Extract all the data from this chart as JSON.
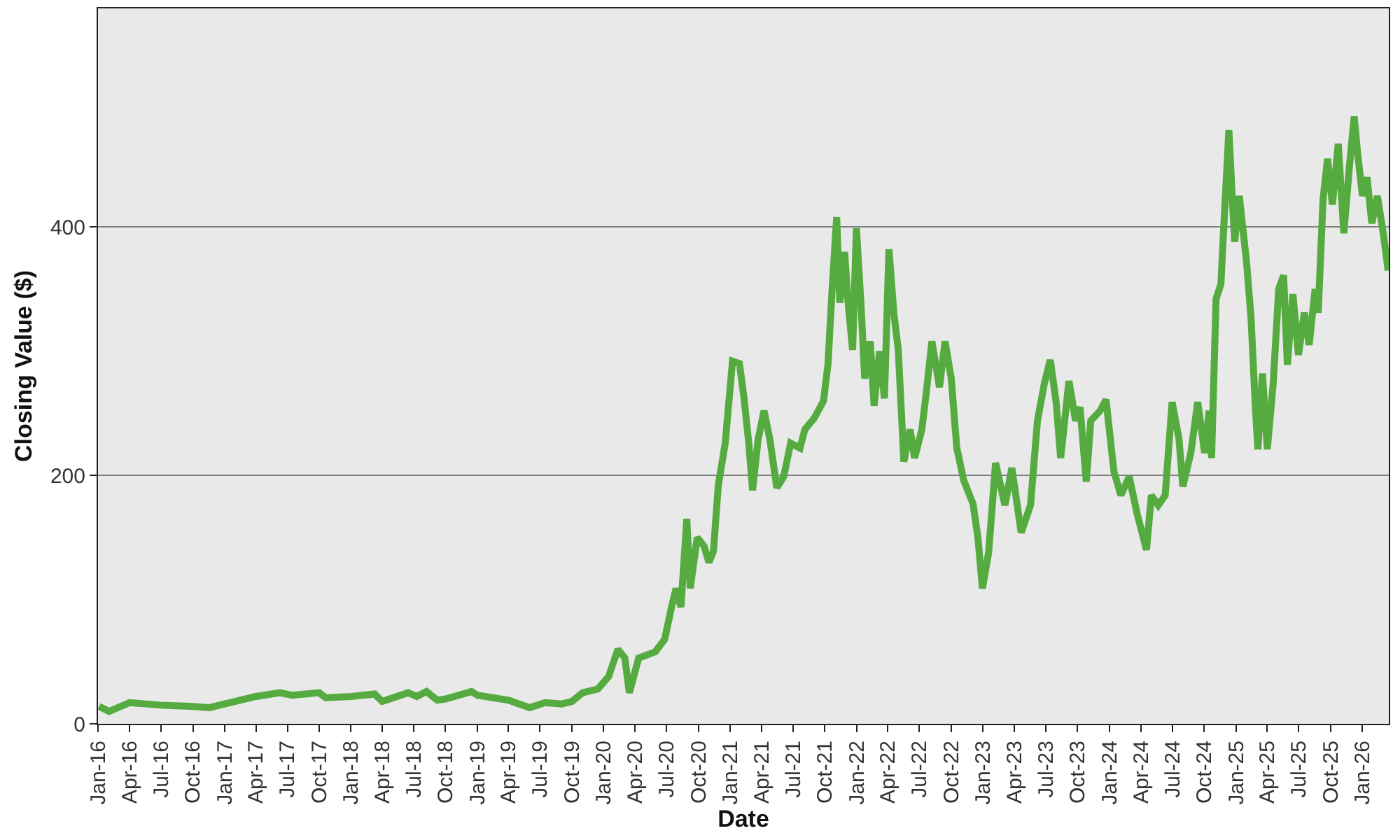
{
  "chart_data": {
    "type": "line",
    "xlabel": "Date",
    "ylabel": "Closing Value ($)",
    "color": "#55ab3f",
    "line_style": "solid",
    "grid": "y",
    "x": [
      "2016-01-04",
      "2016-02-02",
      "2016-04-01",
      "2016-07-01",
      "2016-10-01",
      "2016-11-18",
      "2017-01-01",
      "2017-04-01",
      "2017-06-09",
      "2017-07-15",
      "2017-10-01",
      "2017-10-20",
      "2018-01-01",
      "2018-03-10",
      "2018-04-01",
      "2018-06-15",
      "2018-07-10",
      "2018-08-07",
      "2018-09-07",
      "2018-10-01",
      "2018-12-15",
      "2019-01-01",
      "2019-04-01",
      "2019-06-01",
      "2019-07-15",
      "2019-09-01",
      "2019-10-01",
      "2019-11-01",
      "2019-12-15",
      "2020-01-15",
      "2020-02-11",
      "2020-03-02",
      "2020-03-15",
      "2020-04-11",
      "2020-05-29",
      "2020-06-25",
      "2020-07-15",
      "2020-07-28",
      "2020-08-11",
      "2020-08-28",
      "2020-09-07",
      "2020-09-27",
      "2020-10-17",
      "2020-10-31",
      "2020-11-13",
      "2020-11-27",
      "2020-12-17",
      "2021-01-07",
      "2021-01-27",
      "2021-02-09",
      "2021-02-23",
      "2021-03-06",
      "2021-03-22",
      "2021-04-08",
      "2021-04-25",
      "2021-05-15",
      "2021-06-04",
      "2021-06-24",
      "2021-07-21",
      "2021-08-04",
      "2021-08-31",
      "2021-09-27",
      "2021-10-10",
      "2021-10-21",
      "2021-11-04",
      "2021-11-13",
      "2021-11-27",
      "2021-12-06",
      "2021-12-20",
      "2021-12-31",
      "2022-01-13",
      "2022-01-24",
      "2022-02-09",
      "2022-02-20",
      "2022-03-08",
      "2022-03-22",
      "2022-04-04",
      "2022-04-18",
      "2022-05-01",
      "2022-05-17",
      "2022-06-04",
      "2022-06-17",
      "2022-07-08",
      "2022-07-21",
      "2022-08-06",
      "2022-08-28",
      "2022-09-13",
      "2022-10-01",
      "2022-10-17",
      "2022-11-06",
      "2022-12-03",
      "2022-12-17",
      "2022-12-30",
      "2023-01-17",
      "2023-02-06",
      "2023-03-05",
      "2023-03-25",
      "2023-04-21",
      "2023-05-18",
      "2023-06-07",
      "2023-06-27",
      "2023-07-14",
      "2023-07-31",
      "2023-08-13",
      "2023-09-06",
      "2023-09-25",
      "2023-10-08",
      "2023-10-26",
      "2023-11-08",
      "2023-12-05",
      "2023-12-22",
      "2024-01-14",
      "2024-02-03",
      "2024-02-27",
      "2024-03-21",
      "2024-04-17",
      "2024-05-01",
      "2024-05-21",
      "2024-06-10",
      "2024-06-30",
      "2024-07-20",
      "2024-07-31",
      "2024-08-23",
      "2024-09-12",
      "2024-10-02",
      "2024-10-15",
      "2024-10-22",
      "2024-11-04",
      "2024-11-18",
      "2024-11-24",
      "2024-12-11",
      "2024-12-21",
      "2024-12-28",
      "2025-01-10",
      "2025-01-31",
      "2025-02-13",
      "2025-02-26",
      "2025-03-05",
      "2025-03-18",
      "2025-04-01",
      "2025-04-18",
      "2025-05-04",
      "2025-05-18",
      "2025-05-29",
      "2025-06-14",
      "2025-06-30",
      "2025-07-17",
      "2025-07-31",
      "2025-08-17",
      "2025-08-26",
      "2025-09-09",
      "2025-09-22",
      "2025-10-06",
      "2025-10-23",
      "2025-11-08",
      "2025-11-24",
      "2025-12-08",
      "2025-12-18",
      "2026-01-01",
      "2026-01-14",
      "2026-01-28",
      "2026-02-13",
      "2026-03-02",
      "2026-03-16"
    ],
    "values": [
      14,
      10,
      17,
      15,
      14,
      13,
      16,
      22,
      25,
      23,
      25,
      21,
      22,
      24,
      18,
      25,
      22,
      26,
      19,
      20,
      26,
      23,
      19,
      13,
      17,
      16,
      18,
      25,
      28,
      38,
      60,
      53,
      25,
      53,
      58,
      68,
      94,
      109,
      94,
      165,
      109,
      150,
      143,
      130,
      139,
      192,
      226,
      292,
      290,
      263,
      226,
      188,
      229,
      252,
      229,
      190,
      199,
      226,
      222,
      237,
      246,
      260,
      290,
      346,
      408,
      339,
      380,
      342,
      301,
      399,
      339,
      278,
      308,
      256,
      300,
      262,
      382,
      331,
      301,
      211,
      237,
      214,
      237,
      267,
      308,
      271,
      308,
      278,
      222,
      196,
      177,
      150,
      109,
      138,
      210,
      176,
      206,
      154,
      176,
      244,
      274,
      293,
      259,
      214,
      276,
      244,
      255,
      195,
      244,
      252,
      261,
      203,
      184,
      199,
      169,
      140,
      184,
      176,
      184,
      259,
      229,
      191,
      218,
      259,
      218,
      252,
      214,
      342,
      354,
      388,
      478,
      422,
      388,
      425,
      372,
      327,
      252,
      221,
      282,
      221,
      274,
      350,
      361,
      289,
      346,
      297,
      331,
      305,
      350,
      331,
      422,
      455,
      418,
      467,
      395,
      448,
      489,
      459,
      425,
      440,
      403,
      425,
      395,
      365
    ],
    "xlim": [
      "2016-01-01",
      "2026-03-18"
    ],
    "ylim": [
      0,
      576
    ],
    "yticks": [
      0,
      200,
      400
    ],
    "xticks": [
      {
        "value": "2016-01-01",
        "label": "Jan-16"
      },
      {
        "value": "2016-04-01",
        "label": "Apr-16"
      },
      {
        "value": "2016-07-01",
        "label": "Jul-16"
      },
      {
        "value": "2016-10-01",
        "label": "Oct-16"
      },
      {
        "value": "2017-01-01",
        "label": "Jan-17"
      },
      {
        "value": "2017-04-01",
        "label": "Apr-17"
      },
      {
        "value": "2017-07-01",
        "label": "Jul-17"
      },
      {
        "value": "2017-10-01",
        "label": "Oct-17"
      },
      {
        "value": "2018-01-01",
        "label": "Jan-18"
      },
      {
        "value": "2018-04-01",
        "label": "Apr-18"
      },
      {
        "value": "2018-07-01",
        "label": "Jul-18"
      },
      {
        "value": "2018-10-01",
        "label": "Oct-18"
      },
      {
        "value": "2019-01-01",
        "label": "Jan-19"
      },
      {
        "value": "2019-04-01",
        "label": "Apr-19"
      },
      {
        "value": "2019-07-01",
        "label": "Jul-19"
      },
      {
        "value": "2019-10-01",
        "label": "Oct-19"
      },
      {
        "value": "2020-01-01",
        "label": "Jan-20"
      },
      {
        "value": "2020-04-01",
        "label": "Apr-20"
      },
      {
        "value": "2020-07-01",
        "label": "Jul-20"
      },
      {
        "value": "2020-10-01",
        "label": "Oct-20"
      },
      {
        "value": "2021-01-01",
        "label": "Jan-21"
      },
      {
        "value": "2021-04-01",
        "label": "Apr-21"
      },
      {
        "value": "2021-07-01",
        "label": "Jul-21"
      },
      {
        "value": "2021-10-01",
        "label": "Oct-21"
      },
      {
        "value": "2022-01-01",
        "label": "Jan-22"
      },
      {
        "value": "2022-04-01",
        "label": "Apr-22"
      },
      {
        "value": "2022-07-01",
        "label": "Jul-22"
      },
      {
        "value": "2022-10-01",
        "label": "Oct-22"
      },
      {
        "value": "2023-01-01",
        "label": "Jan-23"
      },
      {
        "value": "2023-04-01",
        "label": "Apr-23"
      },
      {
        "value": "2023-07-01",
        "label": "Jul-23"
      },
      {
        "value": "2023-10-01",
        "label": "Oct-23"
      },
      {
        "value": "2024-01-01",
        "label": "Jan-24"
      },
      {
        "value": "2024-04-01",
        "label": "Apr-24"
      },
      {
        "value": "2024-07-01",
        "label": "Jul-24"
      },
      {
        "value": "2024-10-01",
        "label": "Oct-24"
      },
      {
        "value": "2025-01-01",
        "label": "Jan-25"
      },
      {
        "value": "2025-04-01",
        "label": "Apr-25"
      },
      {
        "value": "2025-07-01",
        "label": "Jul-25"
      },
      {
        "value": "2025-10-01",
        "label": "Oct-25"
      },
      {
        "value": "2026-01-01",
        "label": "Jan-26"
      }
    ]
  }
}
